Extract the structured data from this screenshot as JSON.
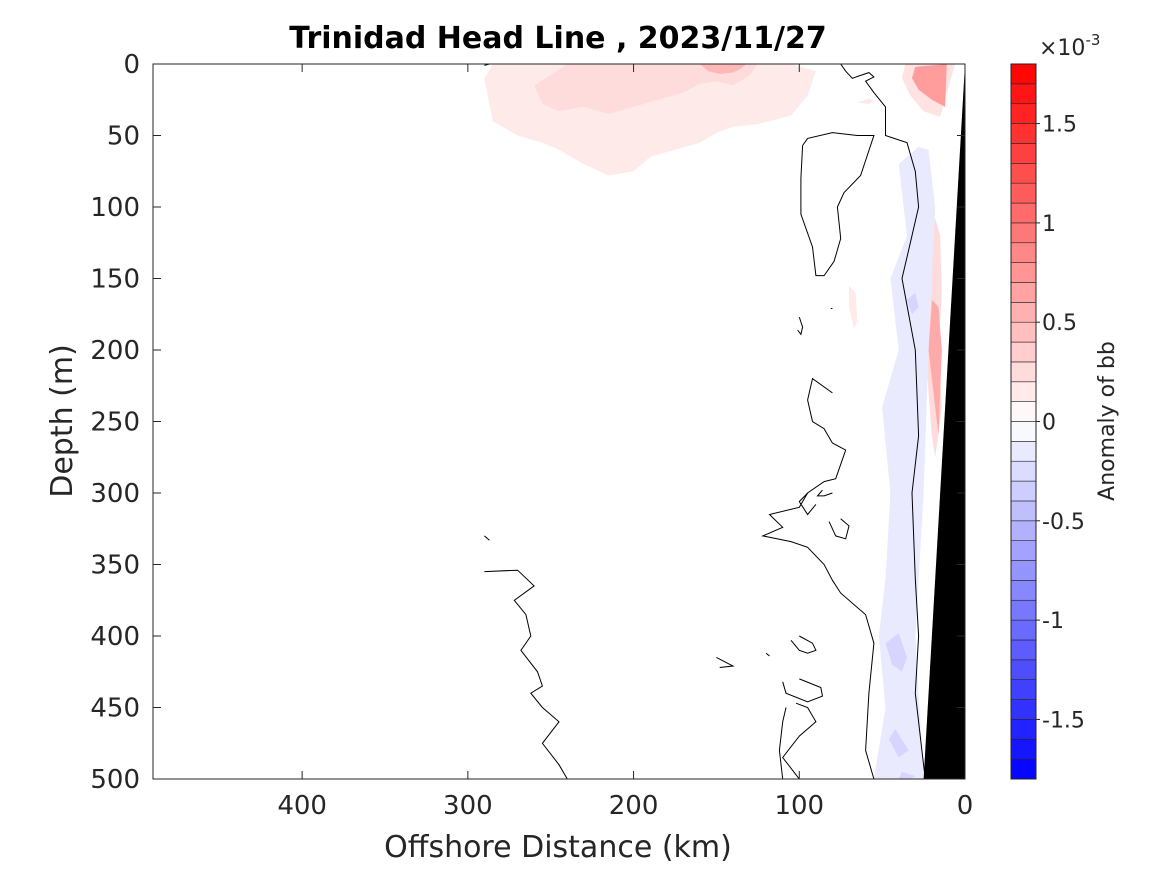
{
  "chart_data": {
    "type": "heatmap",
    "subtype": "filled-contour section",
    "title": "Trinidad Head Line , 2023/11/27",
    "xlabel": "Offshore Distance (km)",
    "ylabel": "Depth (m)",
    "xlim": [
      490,
      0
    ],
    "x_reversed": true,
    "ylim": [
      0,
      500
    ],
    "y_reversed": true,
    "x_ticks": [
      400,
      300,
      200,
      100,
      0
    ],
    "x_tick_labels": [
      "400",
      "300",
      "200",
      "100",
      "0"
    ],
    "y_ticks": [
      0,
      50,
      100,
      150,
      200,
      250,
      300,
      350,
      400,
      450,
      500
    ],
    "y_tick_labels": [
      "0",
      "50",
      "100",
      "150",
      "200",
      "250",
      "300",
      "350",
      "400",
      "450",
      "500"
    ],
    "grid": false,
    "colorbar": {
      "label": "Anomaly of bb",
      "exponent_label": "×10",
      "exponent_power": "-3",
      "min": -1.8,
      "max": 1.8,
      "levels": 36,
      "ticks": [
        1.5,
        1,
        0.5,
        0,
        -0.5,
        -1,
        -1.5
      ],
      "tick_labels": [
        "1.5",
        "1",
        "0.5",
        "0",
        "-0.5",
        "-1",
        "-1.5"
      ],
      "colormap": "blue-white-red diverging",
      "color_min": "#0000ff",
      "color_mid": "#ffffff",
      "color_max": "#ff0000"
    },
    "bathymetry_color": "#000000",
    "anomaly_patches": [
      {
        "sign": "positive",
        "level": 0.15,
        "polygon": [
          [
            290,
            10
          ],
          [
            285,
            40
          ],
          [
            270,
            50
          ],
          [
            255,
            55
          ],
          [
            245,
            60
          ],
          [
            230,
            70
          ],
          [
            215,
            78
          ],
          [
            200,
            75
          ],
          [
            190,
            65
          ],
          [
            175,
            60
          ],
          [
            160,
            55
          ],
          [
            150,
            48
          ],
          [
            140,
            44
          ],
          [
            125,
            42
          ],
          [
            105,
            36
          ],
          [
            95,
            22
          ],
          [
            90,
            5
          ],
          [
            105,
            0
          ],
          [
            150,
            0
          ],
          [
            200,
            0
          ],
          [
            250,
            0
          ],
          [
            285,
            0
          ]
        ]
      },
      {
        "sign": "positive",
        "level": 0.25,
        "polygon": [
          [
            260,
            15
          ],
          [
            255,
            28
          ],
          [
            245,
            33
          ],
          [
            230,
            30
          ],
          [
            215,
            35
          ],
          [
            200,
            30
          ],
          [
            185,
            25
          ],
          [
            170,
            20
          ],
          [
            160,
            14
          ],
          [
            150,
            12
          ],
          [
            140,
            15
          ],
          [
            130,
            8
          ],
          [
            125,
            0
          ],
          [
            160,
            0
          ],
          [
            200,
            0
          ],
          [
            240,
            0
          ]
        ]
      },
      {
        "sign": "positive",
        "level": 0.5,
        "polygon": [
          [
            160,
            0
          ],
          [
            155,
            5
          ],
          [
            148,
            7
          ],
          [
            140,
            6
          ],
          [
            135,
            3
          ],
          [
            132,
            0
          ]
        ]
      },
      {
        "sign": "positive",
        "level": 0.2,
        "polygon": [
          [
            36,
            0
          ],
          [
            38,
            10
          ],
          [
            33,
            22
          ],
          [
            25,
            33
          ],
          [
            15,
            37
          ],
          [
            6,
            0
          ]
        ]
      },
      {
        "sign": "positive",
        "level": 0.7,
        "polygon": [
          [
            30,
            2
          ],
          [
            32,
            10
          ],
          [
            28,
            18
          ],
          [
            20,
            25
          ],
          [
            12,
            30
          ],
          [
            11,
            0
          ]
        ]
      },
      {
        "sign": "positive",
        "level": 0.15,
        "polygon": [
          [
            65,
            27
          ],
          [
            58,
            28
          ],
          [
            55,
            26
          ],
          [
            58,
            24
          ]
        ]
      },
      {
        "sign": "positive",
        "level": 0.15,
        "polygon": [
          [
            70,
            155
          ],
          [
            66,
            160
          ],
          [
            65,
            180
          ],
          [
            67,
            185
          ],
          [
            70,
            170
          ]
        ]
      },
      {
        "sign": "positive",
        "level": 0.25,
        "polygon": [
          [
            22,
            115
          ],
          [
            25,
            130
          ],
          [
            22,
            155
          ],
          [
            24,
            190
          ],
          [
            22,
            230
          ],
          [
            20,
            260
          ],
          [
            18,
            275
          ],
          [
            14,
            240
          ],
          [
            16,
            200
          ],
          [
            14,
            160
          ],
          [
            15,
            120
          ],
          [
            18,
            108
          ]
        ]
      },
      {
        "sign": "positive",
        "level": 0.6,
        "polygon": [
          [
            20,
            165
          ],
          [
            22,
            200
          ],
          [
            18,
            240
          ],
          [
            16,
            260
          ],
          [
            14,
            200
          ],
          [
            16,
            170
          ]
        ]
      },
      {
        "sign": "negative",
        "level": -0.15,
        "polygon": [
          [
            40,
            70
          ],
          [
            35,
            120
          ],
          [
            45,
            150
          ],
          [
            40,
            200
          ],
          [
            50,
            240
          ],
          [
            45,
            300
          ],
          [
            48,
            360
          ],
          [
            52,
            400
          ],
          [
            48,
            450
          ],
          [
            55,
            500
          ],
          [
            25,
            500
          ],
          [
            30,
            400
          ],
          [
            25,
            300
          ],
          [
            22,
            200
          ],
          [
            18,
            100
          ],
          [
            22,
            60
          ],
          [
            28,
            58
          ]
        ]
      },
      {
        "sign": "negative",
        "level": -0.3,
        "polygon": [
          [
            40,
            398
          ],
          [
            35,
            415
          ],
          [
            38,
            425
          ],
          [
            44,
            420
          ],
          [
            48,
            405
          ]
        ]
      },
      {
        "sign": "negative",
        "level": -0.3,
        "polygon": [
          [
            42,
            465
          ],
          [
            34,
            480
          ],
          [
            40,
            485
          ],
          [
            46,
            472
          ]
        ]
      },
      {
        "sign": "negative",
        "level": -0.3,
        "polygon": [
          [
            38,
            495
          ],
          [
            30,
            498
          ],
          [
            33,
            500
          ],
          [
            40,
            500
          ]
        ]
      },
      {
        "sign": "negative",
        "level": -0.3,
        "polygon": [
          [
            30,
            160
          ],
          [
            28,
            170
          ],
          [
            32,
            175
          ],
          [
            35,
            165
          ]
        ]
      }
    ],
    "zero_contour_lines": [
      [
        [
          290,
          1
        ],
        [
          287,
          0
        ]
      ],
      [
        [
          75,
          0
        ],
        [
          72,
          5
        ],
        [
          68,
          10
        ],
        [
          63,
          8
        ],
        [
          58,
          6
        ],
        [
          55,
          9
        ],
        [
          60,
          12
        ],
        [
          55,
          20
        ],
        [
          48,
          30
        ],
        [
          48,
          50
        ],
        [
          35,
          55
        ],
        [
          30,
          75
        ],
        [
          28,
          100
        ],
        [
          34,
          130
        ],
        [
          38,
          150
        ],
        [
          30,
          200
        ],
        [
          28,
          260
        ],
        [
          32,
          300
        ],
        [
          30,
          360
        ],
        [
          28,
          400
        ],
        [
          30,
          440
        ],
        [
          24,
          500
        ]
      ],
      [
        [
          98,
          57
        ],
        [
          99,
          80
        ],
        [
          99,
          105
        ],
        [
          92,
          128
        ],
        [
          90,
          148
        ],
        [
          85,
          148
        ],
        [
          79,
          138
        ],
        [
          75,
          122
        ],
        [
          77,
          100
        ],
        [
          73,
          90
        ],
        [
          63,
          78
        ],
        [
          55,
          50
        ],
        [
          65,
          50
        ],
        [
          80,
          48
        ],
        [
          95,
          52
        ],
        [
          98,
          57
        ]
      ],
      [
        [
          81,
          171
        ],
        [
          80,
          171
        ]
      ],
      [
        [
          100,
          177
        ],
        [
          98,
          184
        ],
        [
          99,
          189
        ],
        [
          101,
          186
        ]
      ],
      [
        [
          80,
          230
        ],
        [
          92,
          220
        ],
        [
          95,
          235
        ],
        [
          92,
          250
        ],
        [
          85,
          255
        ],
        [
          80,
          265
        ],
        [
          72,
          270
        ],
        [
          78,
          290
        ],
        [
          85,
          292
        ],
        [
          95,
          300
        ],
        [
          100,
          310
        ],
        [
          118,
          315
        ],
        [
          110,
          324
        ],
        [
          122,
          330
        ],
        [
          105,
          334
        ],
        [
          95,
          338
        ],
        [
          85,
          350
        ],
        [
          80,
          361
        ],
        [
          75,
          370
        ],
        [
          60,
          385
        ],
        [
          55,
          405
        ],
        [
          58,
          440
        ],
        [
          60,
          480
        ],
        [
          55,
          500
        ]
      ],
      [
        [
          80,
          300
        ],
        [
          85,
          302
        ],
        [
          89,
          302
        ],
        [
          86,
          298
        ]
      ],
      [
        [
          95,
          300
        ],
        [
          100,
          306
        ],
        [
          95,
          315
        ],
        [
          90,
          308
        ]
      ],
      [
        [
          82,
          320
        ],
        [
          78,
          330
        ],
        [
          72,
          332
        ],
        [
          70,
          323
        ],
        [
          75,
          318
        ]
      ],
      [
        [
          290,
          330
        ],
        [
          287,
          333
        ]
      ],
      [
        [
          290,
          355
        ],
        [
          270,
          354
        ],
        [
          260,
          365
        ],
        [
          272,
          375
        ],
        [
          265,
          385
        ],
        [
          262,
          400
        ],
        [
          268,
          410
        ],
        [
          258,
          425
        ],
        [
          255,
          435
        ],
        [
          262,
          440
        ],
        [
          255,
          450
        ],
        [
          245,
          460
        ],
        [
          255,
          475
        ],
        [
          245,
          490
        ],
        [
          240,
          500
        ]
      ],
      [
        [
          100,
          400
        ],
        [
          92,
          405
        ],
        [
          90,
          410
        ],
        [
          95,
          412
        ],
        [
          100,
          410
        ],
        [
          105,
          403
        ]
      ],
      [
        [
          120,
          412
        ],
        [
          118,
          414
        ]
      ],
      [
        [
          150,
          415
        ],
        [
          140,
          421
        ],
        [
          148,
          422
        ]
      ],
      [
        [
          100,
          430
        ],
        [
          87,
          436
        ],
        [
          86,
          442
        ],
        [
          95,
          446
        ],
        [
          108,
          440
        ],
        [
          110,
          432
        ]
      ],
      [
        [
          102,
          447
        ],
        [
          95,
          450
        ],
        [
          90,
          460
        ],
        [
          100,
          470
        ],
        [
          110,
          485
        ],
        [
          100,
          500
        ],
        [
          110,
          500
        ],
        [
          112,
          480
        ],
        [
          110,
          460
        ],
        [
          108,
          450
        ]
      ]
    ],
    "bathymetry": [
      [
        0,
        0
      ],
      [
        25,
        500
      ],
      [
        0,
        500
      ]
    ]
  }
}
